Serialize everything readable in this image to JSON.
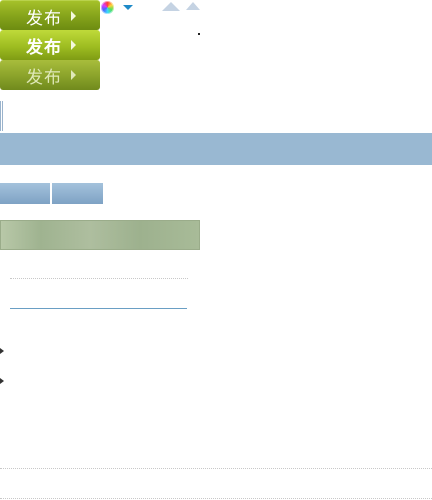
{
  "publish_buttons": [
    {
      "label": "发布",
      "state": "normal"
    },
    {
      "label": "发布",
      "state": "hover"
    },
    {
      "label": "发布",
      "state": "disabled"
    }
  ],
  "icons": {
    "color_picker": "color-wheel-icon",
    "dropdown": "caret-down-icon",
    "collapse_large": "triangle-up-icon",
    "collapse_small": "triangle-up-icon"
  },
  "colors": {
    "publish_green": "#9ebd21",
    "header_band": "#99b8d2",
    "tab_blue": "#8fb0cf",
    "panel_green": "#a8bb98",
    "link_line": "#6a9fc4",
    "dropdown_caret": "#1e8ac8"
  }
}
